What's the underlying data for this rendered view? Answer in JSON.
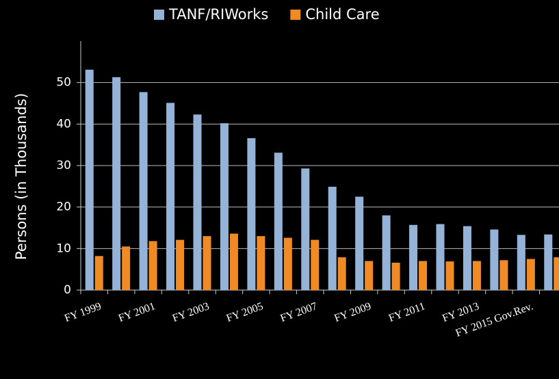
{
  "chart_data": {
    "type": "bar",
    "y_label": "Persons (in Thousands)",
    "categories": [
      "FY 1999",
      null,
      "FY 2001",
      null,
      "FY 2003",
      null,
      "FY 2005",
      null,
      "FY 2007",
      null,
      "FY 2009",
      null,
      "FY 2011",
      null,
      "FY 2013",
      null,
      "FY 2015 Gov.Rev.",
      null
    ],
    "series": [
      {
        "name": "TANF/RIWorks",
        "color": "#95b3d7",
        "values": [
          53.1,
          51.3,
          47.7,
          45.1,
          42.3,
          40.2,
          36.6,
          33.1,
          29.3,
          24.9,
          22.5,
          18.0,
          15.7,
          15.9,
          15.4,
          14.6,
          13.3,
          13.4
        ]
      },
      {
        "name": "Child Care",
        "color": "#ef8a25",
        "values": [
          8.2,
          10.5,
          11.8,
          12.1,
          13.0,
          13.6,
          13.0,
          12.6,
          12.1,
          7.9,
          7.0,
          6.6,
          7.0,
          6.9,
          7.0,
          7.2,
          7.5,
          7.9
        ]
      }
    ],
    "ylim": [
      0,
      60
    ],
    "yticks": [
      0,
      10,
      20,
      30,
      40,
      50
    ],
    "grid": true,
    "legend": "top"
  }
}
